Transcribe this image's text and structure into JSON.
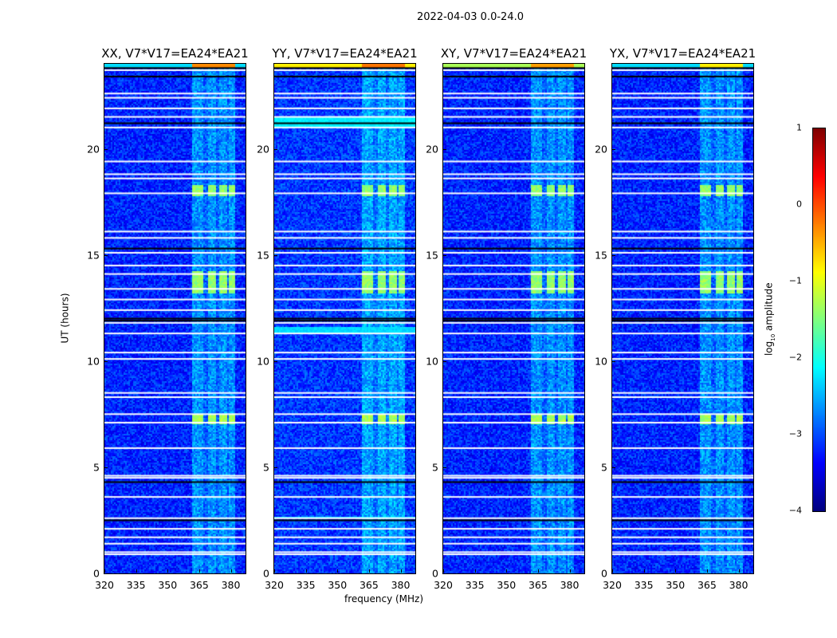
{
  "figure_title": "2022-04-03 0.0-24.0",
  "chart_data": {
    "type": "heatmap",
    "title": "2022-04-03 0.0-24.0",
    "xlabel": "frequency (MHz)",
    "ylabel": "UT (hours)",
    "xlim": [
      320,
      387
    ],
    "ylim": [
      0,
      24
    ],
    "xticks": [
      320,
      335,
      350,
      365,
      380
    ],
    "yticks": [
      0,
      5,
      10,
      15,
      20
    ],
    "colorbar": {
      "label_prefix": "log",
      "label_sub": "10",
      "label_suffix": " amplitude",
      "range": [
        -4,
        1
      ],
      "ticks": [
        1,
        0,
        -1,
        -2,
        -3,
        -4
      ],
      "tick_labels": [
        "1",
        "0",
        "−1",
        "−2",
        "−3",
        "−4"
      ],
      "colormap": "jet"
    },
    "panels": [
      {
        "title": "XX, V7*V17=EA24*EA21",
        "baseline": -3.2,
        "rfi_band_mhz": [
          362,
          382
        ],
        "top_row_level_in_band": -0.3,
        "top_row_level_out_band": -2.3,
        "extra_bands": []
      },
      {
        "title": "YY, V7*V17=EA24*EA21",
        "baseline": -3.1,
        "rfi_band_mhz": [
          362,
          382
        ],
        "top_row_level_in_band": -0.2,
        "top_row_level_out_band": -0.8,
        "extra_bands": [
          {
            "hours": [
              21.0,
              21.5
            ],
            "level": -2.2
          },
          {
            "hours": [
              11.3,
              11.6
            ],
            "level": -2.3
          },
          {
            "hours": [
              2.6,
              2.7
            ],
            "level": -2.2
          }
        ]
      },
      {
        "title": "XY, V7*V17=EA24*EA21",
        "baseline": -3.2,
        "rfi_band_mhz": [
          362,
          382
        ],
        "top_row_level_in_band": -0.4,
        "top_row_level_out_band": -1.3,
        "extra_bands": []
      },
      {
        "title": "YX, V7*V17=EA24*EA21",
        "baseline": -3.2,
        "rfi_band_mhz": [
          362,
          382
        ],
        "top_row_level_in_band": -0.8,
        "top_row_level_out_band": -2.3,
        "extra_bands": []
      }
    ],
    "rfi_channels_mhz": [
      [
        362,
        367
      ],
      [
        369,
        373
      ],
      [
        374.5,
        378
      ],
      [
        379,
        382
      ]
    ],
    "bursts": [
      {
        "hours": [
          7.0,
          7.5
        ],
        "level": -1.3
      },
      {
        "hours": [
          13.2,
          14.2
        ],
        "level": -1.4
      },
      {
        "hours": [
          17.8,
          18.3
        ],
        "level": -1.4
      }
    ],
    "flagged_hours_white": [
      0.9,
      1.0,
      1.4,
      1.7,
      2.1,
      2.6,
      3.6,
      4.5,
      4.6,
      5.9,
      7.1,
      7.5,
      8.3,
      8.5,
      10.1,
      10.4,
      11.3,
      11.8,
      12.4,
      12.9,
      13.4,
      14.1,
      14.5,
      15.1,
      15.8,
      16.1,
      17.9,
      18.6,
      18.8,
      19.4,
      21.0,
      21.5,
      21.9,
      22.4,
      22.6,
      23.7
    ],
    "flagged_hours_black": [
      2.5,
      4.3,
      11.9,
      12.0,
      15.3,
      21.2,
      23.4,
      23.8
    ]
  }
}
